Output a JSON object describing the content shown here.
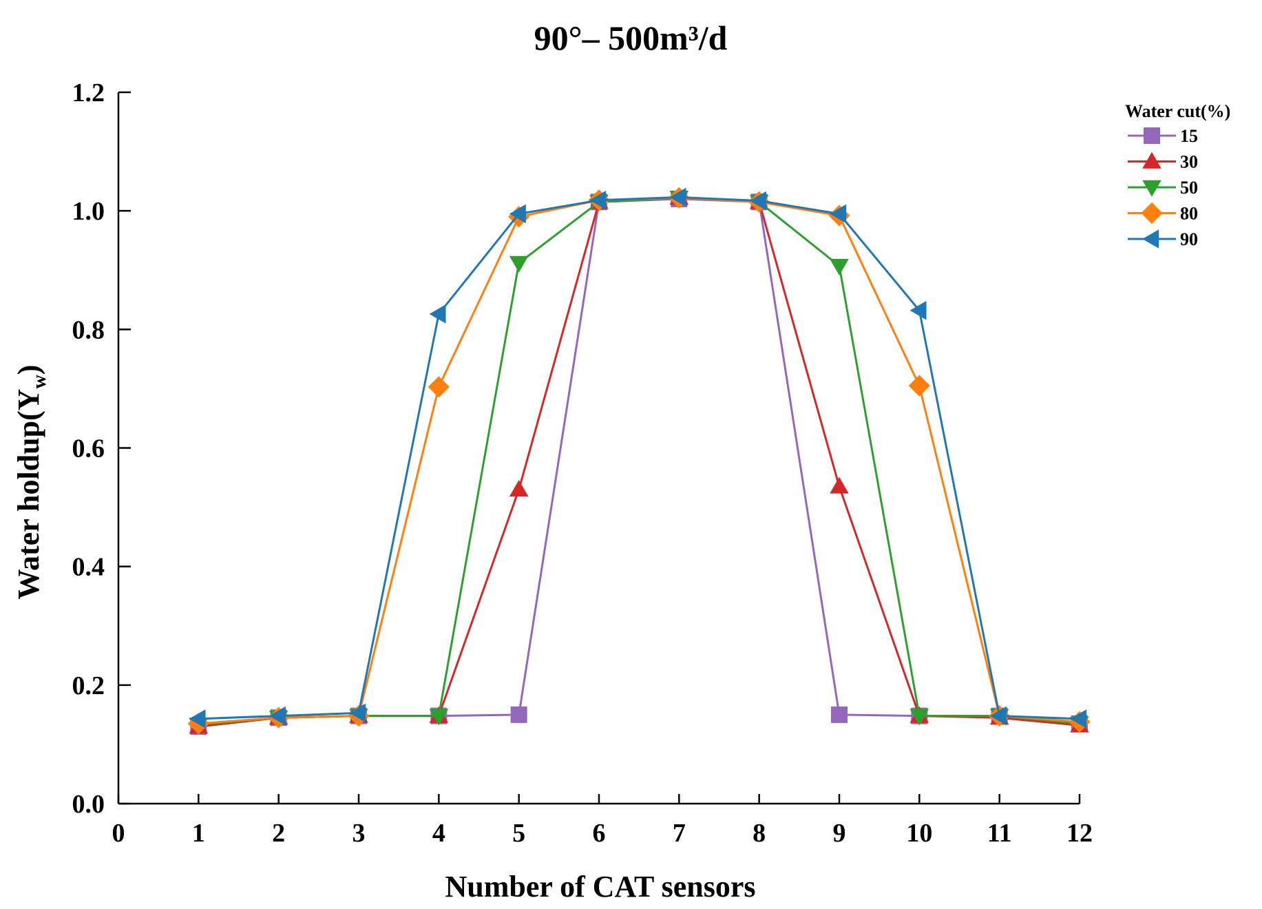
{
  "chart_data": {
    "type": "line",
    "title": "90°– 500m³/d",
    "xlabel": "Number of CAT sensors",
    "ylabel": "Water holdup(Yw)",
    "ylabel_main": "Water holdup(Y",
    "ylabel_sub": "w",
    "ylabel_close": ")",
    "xlim": [
      0,
      12
    ],
    "ylim": [
      0,
      1.2
    ],
    "xticks": [
      "0",
      "1",
      "2",
      "3",
      "4",
      "5",
      "6",
      "7",
      "8",
      "9",
      "10",
      "11",
      "12"
    ],
    "yticks": [
      "0.0",
      "0.2",
      "0.4",
      "0.6",
      "0.8",
      "1.0",
      "1.2"
    ],
    "legend_title": "Water cut(%)",
    "legend_position": "top-right",
    "x": [
      1,
      2,
      3,
      4,
      5,
      6,
      7,
      8,
      9,
      10,
      11,
      12
    ],
    "series": [
      {
        "name": "15",
        "color": "#9467bd",
        "marker": "square",
        "values": [
          0.13,
          0.145,
          0.148,
          0.148,
          0.15,
          1.015,
          1.02,
          1.015,
          0.15,
          0.148,
          0.148,
          0.135
        ]
      },
      {
        "name": "30",
        "color": "#d62728",
        "marker": "triangle-up",
        "values": [
          0.13,
          0.145,
          0.148,
          0.148,
          0.53,
          1.015,
          1.022,
          1.015,
          0.535,
          0.148,
          0.145,
          0.132
        ]
      },
      {
        "name": "50",
        "color": "#2ca02c",
        "marker": "triangle-down",
        "values": [
          0.133,
          0.145,
          0.148,
          0.148,
          0.912,
          1.015,
          1.022,
          1.015,
          0.907,
          0.148,
          0.148,
          0.135
        ]
      },
      {
        "name": "80",
        "color": "#ff7f0e",
        "marker": "diamond",
        "values": [
          0.135,
          0.145,
          0.148,
          0.703,
          0.99,
          1.018,
          1.022,
          1.015,
          0.992,
          0.705,
          0.148,
          0.138
        ]
      },
      {
        "name": "90",
        "color": "#1f77b4",
        "marker": "triangle-left",
        "values": [
          0.143,
          0.148,
          0.153,
          0.826,
          0.995,
          1.018,
          1.023,
          1.017,
          0.995,
          0.832,
          0.148,
          0.143
        ]
      }
    ]
  }
}
